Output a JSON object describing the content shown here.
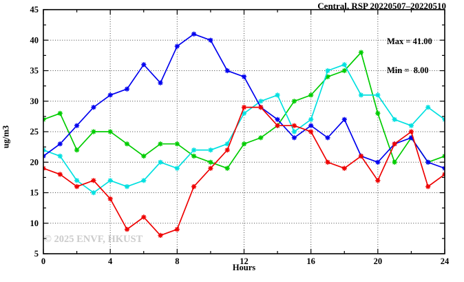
{
  "chart_data": {
    "type": "line",
    "title": "Central, RSP 20220507–20220510",
    "xlabel": "Hours",
    "ylabel": "ug/m3",
    "xlim": [
      0,
      24
    ],
    "ylim": [
      5,
      45
    ],
    "x_major_ticks": [
      0,
      4,
      8,
      12,
      16,
      20,
      24
    ],
    "x_minor_step": 2,
    "y_major_ticks": [
      5,
      10,
      15,
      20,
      25,
      30,
      35,
      40,
      45
    ],
    "y_minor_step": 2.5,
    "grid": "dotted lines at interior major ticks, on",
    "legend_position": "none",
    "annotations": {
      "max_label": "Max = 41.00",
      "min_label": "Min =  8.00"
    },
    "watermark": "© 2025 ENVF, HKUST",
    "x": [
      0,
      1,
      2,
      3,
      4,
      5,
      6,
      7,
      8,
      9,
      10,
      11,
      12,
      13,
      14,
      15,
      16,
      17,
      18,
      19,
      20,
      21,
      22,
      23,
      24
    ],
    "series": [
      {
        "name": "series-green",
        "color": "#00cc00",
        "values": [
          27,
          28,
          22,
          25,
          25,
          23,
          21,
          23,
          23,
          21,
          20,
          19,
          23,
          24,
          26,
          30,
          31,
          34,
          35,
          38,
          28,
          20,
          24,
          20,
          21
        ]
      },
      {
        "name": "series-cyan",
        "color": "#00e0e0",
        "values": [
          22,
          21,
          17,
          15,
          17,
          16,
          17,
          20,
          19,
          22,
          22,
          23,
          28,
          30,
          31,
          25,
          27,
          35,
          36,
          31,
          31,
          27,
          26,
          29,
          27
        ]
      },
      {
        "name": "series-blue",
        "color": "#0000ee",
        "values": [
          21,
          23,
          26,
          29,
          31,
          32,
          36,
          33,
          39,
          41,
          40,
          35,
          34,
          29,
          27,
          24,
          26,
          24,
          27,
          21,
          20,
          23,
          24,
          20,
          19
        ]
      },
      {
        "name": "series-red",
        "color": "#ee0000",
        "values": [
          19,
          18,
          16,
          17,
          14,
          9,
          11,
          8,
          9,
          16,
          19,
          22,
          29,
          29,
          26,
          26,
          25,
          20,
          19,
          21,
          17,
          23,
          25,
          16,
          18
        ]
      }
    ],
    "frame_color": "#000000",
    "grid_color": "#444444"
  }
}
